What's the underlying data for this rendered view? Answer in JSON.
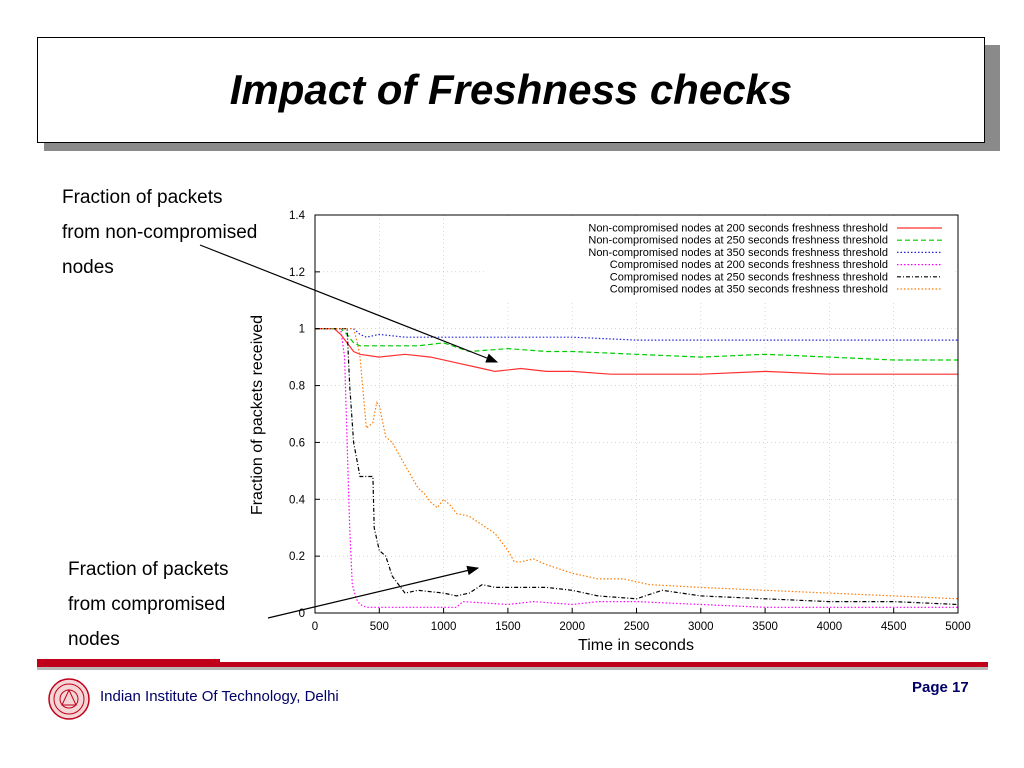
{
  "slide": {
    "title": "Impact of Freshness checks",
    "footer_institution": "Indian Institute Of Technology, Delhi",
    "page_label": "Page 17",
    "annotation_top": [
      "Fraction of packets",
      "from non-compromised",
      "nodes"
    ],
    "annotation_bottom": [
      "Fraction of packets",
      "from compromised",
      "nodes"
    ],
    "colors": {
      "footer_red": "#c0001a",
      "footer_text": "#000066"
    }
  },
  "chart_data": {
    "type": "line",
    "title": "",
    "xlabel": "Time in seconds",
    "ylabel": "Fraction of packets received",
    "xlim": [
      0,
      5000
    ],
    "ylim": [
      0,
      1.4
    ],
    "xticks": [
      0,
      500,
      1000,
      1500,
      2000,
      2500,
      3000,
      3500,
      4000,
      4500,
      5000
    ],
    "yticks": [
      0,
      0.2,
      0.4,
      0.6,
      0.8,
      1,
      1.2,
      1.4
    ],
    "grid": true,
    "legend_position": "top-right",
    "series": [
      {
        "name": "Non-compromised nodes at 200 seconds freshness threshold",
        "color": "#ff3030",
        "dash": "solid",
        "x": [
          0,
          150,
          200,
          250,
          300,
          350,
          500,
          700,
          900,
          1100,
          1300,
          1400,
          1600,
          1800,
          2000,
          2300,
          2500,
          3000,
          3500,
          4000,
          4500,
          5000
        ],
        "y": [
          1,
          1,
          0.98,
          0.95,
          0.92,
          0.91,
          0.9,
          0.91,
          0.9,
          0.88,
          0.86,
          0.85,
          0.86,
          0.85,
          0.85,
          0.84,
          0.84,
          0.84,
          0.85,
          0.84,
          0.84,
          0.84
        ]
      },
      {
        "name": "Non-compromised nodes at 250 seconds freshness threshold",
        "color": "#00cc00",
        "dash": "dashed",
        "x": [
          0,
          200,
          250,
          300,
          350,
          500,
          800,
          1000,
          1200,
          1500,
          1800,
          2000,
          2500,
          3000,
          3500,
          4000,
          4500,
          5000
        ],
        "y": [
          1,
          1,
          0.98,
          0.95,
          0.94,
          0.94,
          0.94,
          0.95,
          0.92,
          0.93,
          0.92,
          0.92,
          0.91,
          0.9,
          0.91,
          0.9,
          0.89,
          0.89
        ]
      },
      {
        "name": "Non-compromised nodes at 350 seconds freshness threshold",
        "color": "#2020dd",
        "dash": "dotted",
        "x": [
          0,
          300,
          350,
          400,
          500,
          700,
          1000,
          1500,
          2000,
          2500,
          3000,
          3500,
          4000,
          4500,
          5000
        ],
        "y": [
          1,
          1,
          0.98,
          0.97,
          0.98,
          0.97,
          0.97,
          0.97,
          0.97,
          0.96,
          0.96,
          0.96,
          0.96,
          0.96,
          0.96
        ]
      },
      {
        "name": "Compromised nodes at 200 seconds freshness threshold",
        "color": "#ff00ff",
        "dash": "dotted",
        "x": [
          0,
          200,
          230,
          250,
          270,
          290,
          320,
          350,
          400,
          500,
          1000,
          1100,
          1150,
          1500,
          1700,
          2000,
          2200,
          2500,
          3000,
          3500,
          4000,
          4500,
          5000
        ],
        "y": [
          1,
          1,
          0.9,
          0.6,
          0.3,
          0.1,
          0.05,
          0.03,
          0.02,
          0.02,
          0.02,
          0.02,
          0.04,
          0.03,
          0.04,
          0.03,
          0.04,
          0.04,
          0.03,
          0.02,
          0.02,
          0.02,
          0.02
        ]
      },
      {
        "name": "Compromised nodes at 250 seconds freshness threshold",
        "color": "#000000",
        "dash": "dashdot",
        "x": [
          0,
          250,
          270,
          300,
          350,
          400,
          450,
          460,
          500,
          550,
          600,
          650,
          700,
          800,
          1000,
          1100,
          1200,
          1300,
          1400,
          1500,
          1600,
          1800,
          2000,
          2200,
          2500,
          2700,
          3000,
          3500,
          4000,
          4500,
          5000
        ],
        "y": [
          1,
          1,
          0.8,
          0.6,
          0.48,
          0.48,
          0.48,
          0.3,
          0.22,
          0.2,
          0.13,
          0.1,
          0.07,
          0.08,
          0.07,
          0.06,
          0.07,
          0.1,
          0.09,
          0.09,
          0.09,
          0.09,
          0.08,
          0.06,
          0.05,
          0.08,
          0.06,
          0.05,
          0.04,
          0.04,
          0.03
        ]
      },
      {
        "name": "Compromised nodes at 350 seconds freshness threshold",
        "color": "#ff7a00",
        "dash": "dotted",
        "x": [
          0,
          300,
          330,
          350,
          400,
          450,
          480,
          500,
          550,
          600,
          700,
          800,
          850,
          900,
          950,
          1000,
          1050,
          1100,
          1200,
          1300,
          1400,
          1500,
          1550,
          1600,
          1700,
          1800,
          2000,
          2200,
          2400,
          2600,
          3000,
          3500,
          4000,
          4500,
          5000
        ],
        "y": [
          1,
          1,
          0.95,
          0.9,
          0.65,
          0.67,
          0.74,
          0.73,
          0.62,
          0.6,
          0.52,
          0.44,
          0.42,
          0.39,
          0.37,
          0.4,
          0.38,
          0.35,
          0.34,
          0.31,
          0.28,
          0.22,
          0.18,
          0.18,
          0.19,
          0.17,
          0.14,
          0.12,
          0.12,
          0.1,
          0.09,
          0.08,
          0.07,
          0.06,
          0.05
        ]
      }
    ]
  }
}
